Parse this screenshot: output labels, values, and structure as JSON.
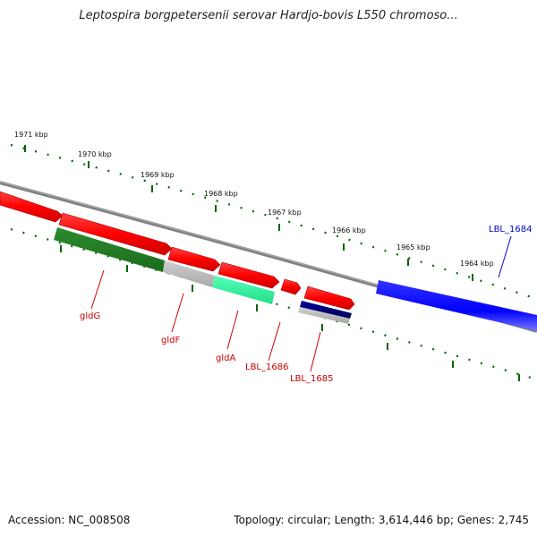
{
  "title": "Leptospira borgpetersenii serovar Hardjo-bovis L550 chromoso...",
  "footer": {
    "accession": "Accession: NC_008508",
    "topology": "Topology: circular; Length: 3,614,446 bp; Genes: 2,745"
  },
  "ruler": {
    "kbp_labels": [
      "1971 kbp",
      "1970 kbp",
      "1969 kbp",
      "1968 kbp",
      "1967 kbp",
      "1966 kbp",
      "1965 kbp",
      "1964 kbp"
    ]
  },
  "genes": [
    {
      "label": "gldG",
      "color": "#cc0000"
    },
    {
      "label": "gldF",
      "color": "#cc0000"
    },
    {
      "label": "gldA",
      "color": "#cc0000"
    },
    {
      "label": "LBL_1686",
      "color": "#cc0000"
    },
    {
      "label": "LBL_1685",
      "color": "#cc0000"
    },
    {
      "label": "LBL_1684",
      "color": "#0000cc"
    }
  ],
  "colors": {
    "forward_gene": "#ff0000",
    "reverse_gene_blue": "#0000ff",
    "green_feature": "#228b22",
    "grey_feature": "#c0c0c0",
    "cyan_feature": "#33ffaa",
    "navy_feature": "#000080",
    "backbone": "#808080",
    "tick": "#006400"
  }
}
